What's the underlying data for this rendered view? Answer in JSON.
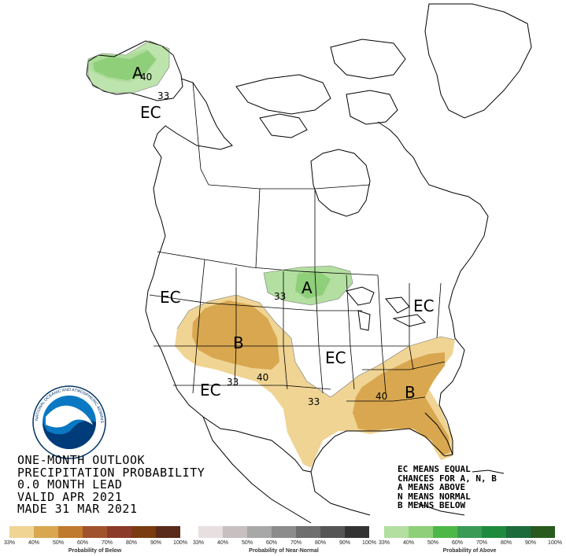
{
  "title_lines": [
    "ONE-MONTH OUTLOOK",
    "PRECIPITATION PROBABILITY",
    "0.0 MONTH LEAD",
    "VALID APR 2021",
    "MADE 31 MAR 2021"
  ],
  "legend_lines": [
    "EC MEANS EQUAL",
    "CHANCES FOR A, N, B",
    "A MEANS ABOVE",
    "N MEANS NORMAL",
    "B MEANS BELOW"
  ],
  "logo": {
    "text": "NOAA",
    "ring_text": "NATIONAL OCEANIC AND ATMOSPHERIC ADMINISTRATION"
  },
  "map_labels": {
    "alaska_a": "A",
    "alaska_40": "40",
    "alaska_33": "33",
    "alaska_ec": "EC",
    "midwest_a": "A",
    "midwest_33": "33",
    "west_ec": "EC",
    "east_ec": "EC",
    "central_ec": "EC",
    "southwest_ec": "EC",
    "rockies_b": "B",
    "rockies_33": "33",
    "rockies_40": "40",
    "texas_33": "33",
    "southeast_b": "B",
    "southeast_40": "40"
  },
  "colors": {
    "below_33": "#f0d493",
    "below_40": "#d8a750",
    "above_33": "#b3dfa0",
    "above_40": "#8fcf7a"
  },
  "scales": [
    {
      "label": "Probability of Below",
      "ticks": [
        "33%",
        "40%",
        "50%",
        "60%",
        "70%",
        "80%",
        "90%",
        "100%"
      ],
      "colors": [
        "#f0d493",
        "#d8a750",
        "#bf7a30",
        "#a0522d",
        "#8b3a2a",
        "#7a3b10",
        "#5a2a1a"
      ]
    },
    {
      "label": "Probability of Near-Normal",
      "ticks": [
        "33%",
        "40%",
        "50%",
        "60%",
        "70%",
        "80%",
        "90%",
        "100%"
      ],
      "colors": [
        "#e8e0e0",
        "#c8c0c0",
        "#a8a8a8",
        "#8c8c8c",
        "#6e6e6e",
        "#555555",
        "#333333"
      ]
    },
    {
      "label": "Probability of Above",
      "ticks": [
        "33%",
        "40%",
        "50%",
        "60%",
        "70%",
        "80%",
        "90%",
        "100%"
      ],
      "colors": [
        "#b3dfa0",
        "#8fcf7a",
        "#4db848",
        "#3a9a56",
        "#1e8a3e",
        "#1d6b3a",
        "#285a20"
      ]
    }
  ]
}
